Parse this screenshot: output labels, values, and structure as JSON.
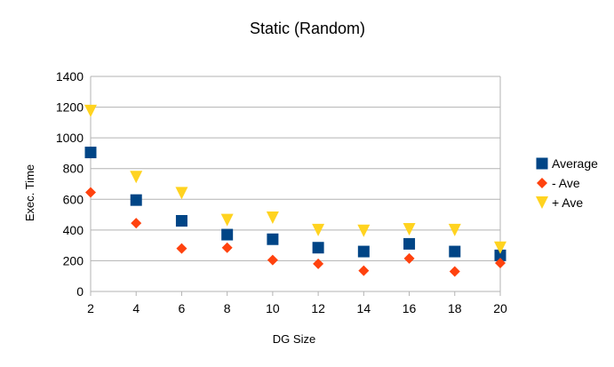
{
  "chart_data": {
    "type": "scatter",
    "title": "Static (Random)",
    "xlabel": "DG Size",
    "ylabel": "Exec. Time",
    "x": [
      2,
      4,
      6,
      8,
      10,
      12,
      14,
      16,
      18,
      20
    ],
    "xticks": [
      "2",
      "4",
      "6",
      "8",
      "10",
      "12",
      "14",
      "16",
      "18",
      "20"
    ],
    "yticks": [
      "0",
      "200",
      "400",
      "600",
      "800",
      "1000",
      "1200",
      "1400"
    ],
    "ylim": [
      0,
      1400
    ],
    "grid": true,
    "legend_position": "right",
    "series": [
      {
        "name": "Average",
        "marker": "square",
        "color": "#004586",
        "values": [
          905,
          595,
          460,
          370,
          340,
          285,
          260,
          310,
          260,
          235
        ]
      },
      {
        "name": "- Ave",
        "marker": "diamond",
        "color": "#ff420e",
        "values": [
          645,
          445,
          280,
          285,
          205,
          180,
          135,
          215,
          130,
          185
        ]
      },
      {
        "name": "+ Ave",
        "marker": "triangle-down",
        "color": "#ffd320",
        "values": [
          1175,
          745,
          640,
          465,
          480,
          400,
          395,
          405,
          400,
          285
        ]
      }
    ]
  }
}
